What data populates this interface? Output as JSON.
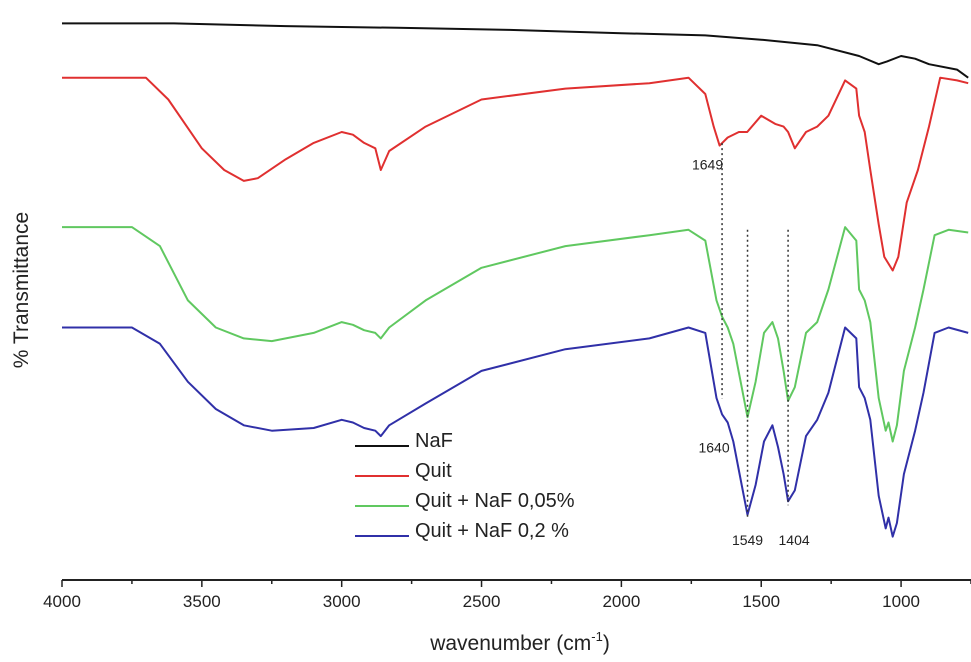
{
  "chart_data": {
    "type": "line",
    "xlabel": "wavenumber (cm",
    "xlabel_sup": "-1",
    "xlabel_close": ")",
    "ylabel": "% Transmittance",
    "xlim": [
      4000,
      750
    ],
    "x_reversed": true,
    "x_ticks": [
      "4000",
      "3500",
      "3000",
      "2500",
      "2000",
      "1500",
      "1000"
    ],
    "y_ticks_shown": false,
    "grid": false,
    "legend_position": "lower-center",
    "series": [
      {
        "name": "NaF",
        "color": "#111111",
        "points": [
          [
            4000,
            0.99
          ],
          [
            3600,
            0.99
          ],
          [
            3200,
            0.985
          ],
          [
            2800,
            0.982
          ],
          [
            2400,
            0.978
          ],
          [
            2000,
            0.972
          ],
          [
            1700,
            0.968
          ],
          [
            1500,
            0.96
          ],
          [
            1300,
            0.95
          ],
          [
            1150,
            0.93
          ],
          [
            1080,
            0.915
          ],
          [
            1050,
            0.92
          ],
          [
            1000,
            0.93
          ],
          [
            950,
            0.925
          ],
          [
            900,
            0.915
          ],
          [
            800,
            0.905
          ],
          [
            760,
            0.89
          ]
        ]
      },
      {
        "name": "Quit",
        "color": "#e03030",
        "points": [
          [
            4000,
            0.89
          ],
          [
            3700,
            0.89
          ],
          [
            3620,
            0.85
          ],
          [
            3500,
            0.76
          ],
          [
            3420,
            0.72
          ],
          [
            3350,
            0.7
          ],
          [
            3300,
            0.705
          ],
          [
            3200,
            0.74
          ],
          [
            3100,
            0.77
          ],
          [
            3000,
            0.79
          ],
          [
            2960,
            0.785
          ],
          [
            2920,
            0.77
          ],
          [
            2880,
            0.76
          ],
          [
            2860,
            0.72
          ],
          [
            2830,
            0.755
          ],
          [
            2700,
            0.8
          ],
          [
            2500,
            0.85
          ],
          [
            2200,
            0.87
          ],
          [
            1900,
            0.88
          ],
          [
            1760,
            0.89
          ],
          [
            1700,
            0.86
          ],
          [
            1670,
            0.8
          ],
          [
            1649,
            0.765
          ],
          [
            1620,
            0.78
          ],
          [
            1580,
            0.79
          ],
          [
            1550,
            0.79
          ],
          [
            1500,
            0.82
          ],
          [
            1450,
            0.805
          ],
          [
            1420,
            0.8
          ],
          [
            1404,
            0.79
          ],
          [
            1380,
            0.76
          ],
          [
            1340,
            0.79
          ],
          [
            1300,
            0.8
          ],
          [
            1260,
            0.82
          ],
          [
            1200,
            0.885
          ],
          [
            1160,
            0.87
          ],
          [
            1150,
            0.82
          ],
          [
            1130,
            0.79
          ],
          [
            1110,
            0.72
          ],
          [
            1080,
            0.62
          ],
          [
            1060,
            0.56
          ],
          [
            1030,
            0.535
          ],
          [
            1010,
            0.56
          ],
          [
            980,
            0.66
          ],
          [
            940,
            0.72
          ],
          [
            900,
            0.8
          ],
          [
            860,
            0.89
          ],
          [
            800,
            0.885
          ],
          [
            760,
            0.88
          ]
        ]
      },
      {
        "name": "Quit + NaF 0,05%",
        "color": "#60c860",
        "points": [
          [
            4000,
            0.615
          ],
          [
            3750,
            0.615
          ],
          [
            3650,
            0.58
          ],
          [
            3550,
            0.48
          ],
          [
            3450,
            0.43
          ],
          [
            3350,
            0.41
          ],
          [
            3250,
            0.405
          ],
          [
            3100,
            0.42
          ],
          [
            3000,
            0.44
          ],
          [
            2960,
            0.435
          ],
          [
            2920,
            0.425
          ],
          [
            2880,
            0.42
          ],
          [
            2860,
            0.41
          ],
          [
            2830,
            0.43
          ],
          [
            2700,
            0.48
          ],
          [
            2500,
            0.54
          ],
          [
            2200,
            0.58
          ],
          [
            1900,
            0.6
          ],
          [
            1760,
            0.61
          ],
          [
            1700,
            0.59
          ],
          [
            1660,
            0.48
          ],
          [
            1640,
            0.45
          ],
          [
            1620,
            0.43
          ],
          [
            1600,
            0.4
          ],
          [
            1570,
            0.32
          ],
          [
            1549,
            0.265
          ],
          [
            1520,
            0.33
          ],
          [
            1490,
            0.42
          ],
          [
            1460,
            0.44
          ],
          [
            1440,
            0.41
          ],
          [
            1420,
            0.35
          ],
          [
            1404,
            0.295
          ],
          [
            1380,
            0.32
          ],
          [
            1340,
            0.42
          ],
          [
            1300,
            0.44
          ],
          [
            1260,
            0.5
          ],
          [
            1200,
            0.615
          ],
          [
            1160,
            0.59
          ],
          [
            1150,
            0.5
          ],
          [
            1130,
            0.48
          ],
          [
            1110,
            0.44
          ],
          [
            1080,
            0.3
          ],
          [
            1055,
            0.24
          ],
          [
            1045,
            0.255
          ],
          [
            1030,
            0.22
          ],
          [
            1015,
            0.25
          ],
          [
            990,
            0.35
          ],
          [
            950,
            0.43
          ],
          [
            920,
            0.5
          ],
          [
            880,
            0.6
          ],
          [
            830,
            0.61
          ],
          [
            760,
            0.605
          ]
        ]
      },
      {
        "name": "Quit + NaF 0,2 %",
        "color": "#3030a8",
        "points": [
          [
            4000,
            0.43
          ],
          [
            3750,
            0.43
          ],
          [
            3650,
            0.4
          ],
          [
            3550,
            0.33
          ],
          [
            3450,
            0.28
          ],
          [
            3350,
            0.25
          ],
          [
            3250,
            0.24
          ],
          [
            3100,
            0.245
          ],
          [
            3000,
            0.26
          ],
          [
            2960,
            0.255
          ],
          [
            2920,
            0.245
          ],
          [
            2880,
            0.24
          ],
          [
            2860,
            0.23
          ],
          [
            2830,
            0.25
          ],
          [
            2700,
            0.29
          ],
          [
            2500,
            0.35
          ],
          [
            2200,
            0.39
          ],
          [
            1900,
            0.41
          ],
          [
            1760,
            0.43
          ],
          [
            1700,
            0.42
          ],
          [
            1660,
            0.3
          ],
          [
            1640,
            0.27
          ],
          [
            1620,
            0.255
          ],
          [
            1600,
            0.22
          ],
          [
            1570,
            0.14
          ],
          [
            1549,
            0.085
          ],
          [
            1520,
            0.14
          ],
          [
            1490,
            0.22
          ],
          [
            1460,
            0.25
          ],
          [
            1440,
            0.21
          ],
          [
            1420,
            0.16
          ],
          [
            1404,
            0.11
          ],
          [
            1380,
            0.13
          ],
          [
            1340,
            0.23
          ],
          [
            1300,
            0.26
          ],
          [
            1260,
            0.31
          ],
          [
            1200,
            0.43
          ],
          [
            1160,
            0.41
          ],
          [
            1150,
            0.32
          ],
          [
            1130,
            0.3
          ],
          [
            1110,
            0.26
          ],
          [
            1080,
            0.12
          ],
          [
            1055,
            0.06
          ],
          [
            1045,
            0.08
          ],
          [
            1030,
            0.045
          ],
          [
            1015,
            0.07
          ],
          [
            990,
            0.16
          ],
          [
            950,
            0.24
          ],
          [
            920,
            0.31
          ],
          [
            880,
            0.42
          ],
          [
            830,
            0.43
          ],
          [
            760,
            0.42
          ]
        ]
      }
    ],
    "annotations": [
      {
        "text": "1649",
        "x": 1649,
        "series": "Quit"
      },
      {
        "text": "1640",
        "x": 1640,
        "series": "Quit + NaF 0,2 %"
      },
      {
        "text": "1549",
        "x": 1549,
        "series": "Quit + NaF 0,2 %"
      },
      {
        "text": "1404",
        "x": 1404,
        "series": "Quit + NaF 0,2 %"
      }
    ]
  }
}
